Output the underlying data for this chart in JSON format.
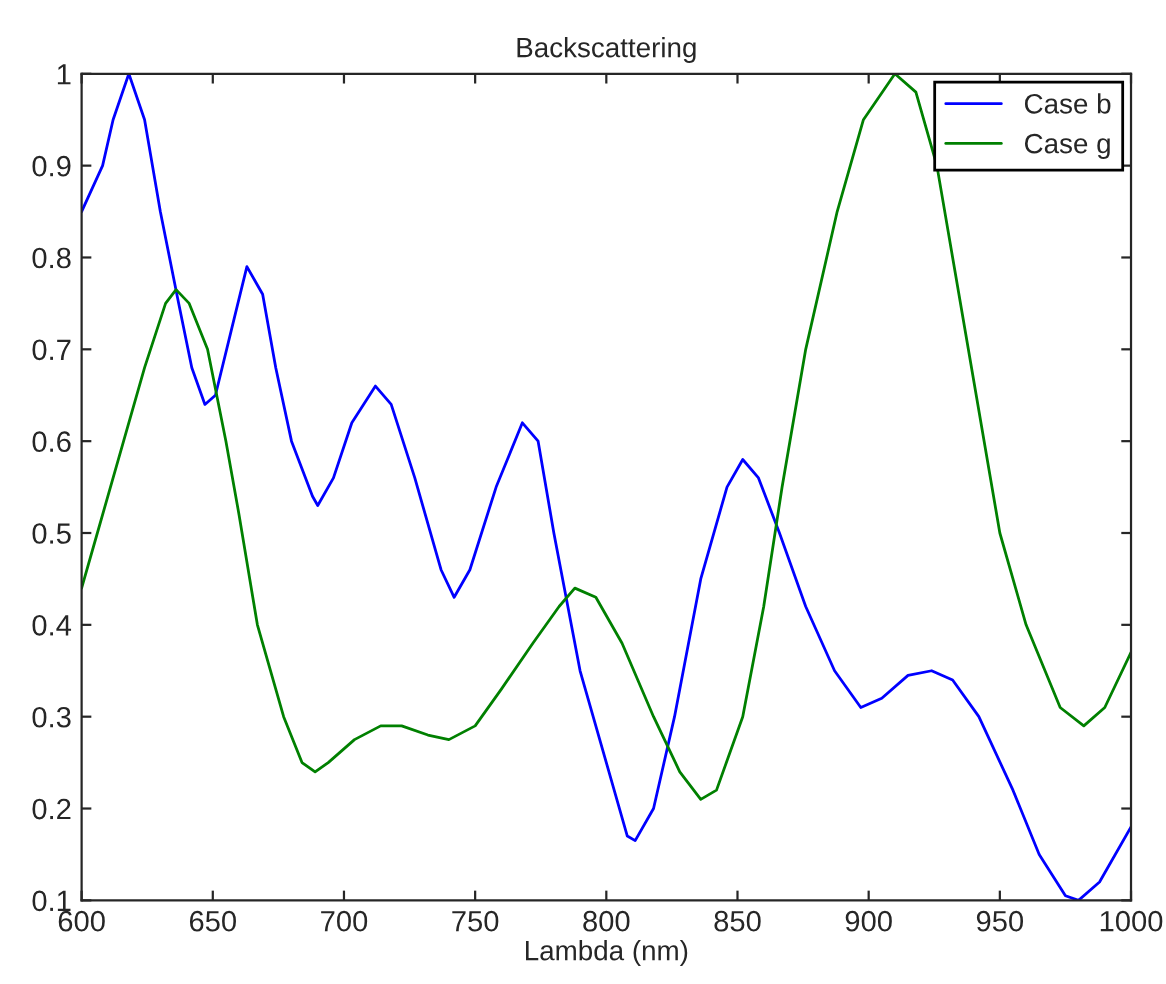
{
  "chart_data": {
    "type": "line",
    "title": "Backscattering",
    "xlabel": "Lambda (nm)",
    "xlim": [
      600,
      1000
    ],
    "xticks": [
      600,
      650,
      700,
      750,
      800,
      850,
      900,
      950,
      1000
    ],
    "ylim": [
      0.1,
      1
    ],
    "yticks": [
      0.1,
      0.2,
      0.3,
      0.4,
      0.5,
      0.6,
      0.7,
      0.8,
      0.9,
      1
    ],
    "legend": "top right",
    "grid": false,
    "line_style": "solid",
    "series": [
      {
        "name": "Case b",
        "color": "#0000ff",
        "x": [
          600,
          608,
          612,
          618,
          624,
          630,
          637,
          642,
          647,
          651,
          657,
          663,
          669,
          674,
          680,
          688,
          690,
          696,
          703,
          712,
          718,
          727,
          737,
          742,
          748,
          758,
          768,
          774,
          780,
          790,
          800,
          808,
          811,
          818,
          826,
          836,
          846,
          852,
          858,
          866,
          876,
          887,
          897,
          905,
          915,
          924,
          932,
          942,
          955,
          965,
          975,
          980,
          988,
          1000
        ],
        "values": [
          0.85,
          0.9,
          0.95,
          1.0,
          0.95,
          0.85,
          0.75,
          0.68,
          0.64,
          0.65,
          0.72,
          0.79,
          0.76,
          0.68,
          0.6,
          0.54,
          0.53,
          0.56,
          0.62,
          0.66,
          0.64,
          0.56,
          0.46,
          0.43,
          0.46,
          0.55,
          0.62,
          0.6,
          0.5,
          0.35,
          0.25,
          0.17,
          0.165,
          0.2,
          0.3,
          0.45,
          0.55,
          0.58,
          0.56,
          0.5,
          0.42,
          0.35,
          0.31,
          0.32,
          0.345,
          0.35,
          0.34,
          0.3,
          0.22,
          0.15,
          0.105,
          0.1,
          0.12,
          0.18
        ]
      },
      {
        "name": "Case g",
        "color": "#008000",
        "x": [
          600,
          606,
          616,
          624,
          632,
          636,
          641,
          648,
          655,
          660,
          667,
          677,
          684,
          689,
          694,
          704,
          714,
          722,
          732,
          740,
          750,
          760,
          772,
          782,
          788,
          796,
          806,
          818,
          828,
          836,
          842,
          852,
          860,
          867,
          876,
          888,
          898,
          910,
          918,
          926,
          932,
          941,
          950,
          960,
          973,
          982,
          990,
          1000
        ],
        "values": [
          0.44,
          0.5,
          0.6,
          0.68,
          0.75,
          0.765,
          0.75,
          0.7,
          0.6,
          0.52,
          0.4,
          0.3,
          0.25,
          0.24,
          0.25,
          0.275,
          0.29,
          0.29,
          0.28,
          0.275,
          0.29,
          0.33,
          0.38,
          0.42,
          0.44,
          0.43,
          0.38,
          0.3,
          0.24,
          0.21,
          0.22,
          0.3,
          0.42,
          0.55,
          0.7,
          0.85,
          0.95,
          1.0,
          0.98,
          0.9,
          0.8,
          0.65,
          0.5,
          0.4,
          0.31,
          0.29,
          0.31,
          0.37
        ]
      }
    ]
  }
}
